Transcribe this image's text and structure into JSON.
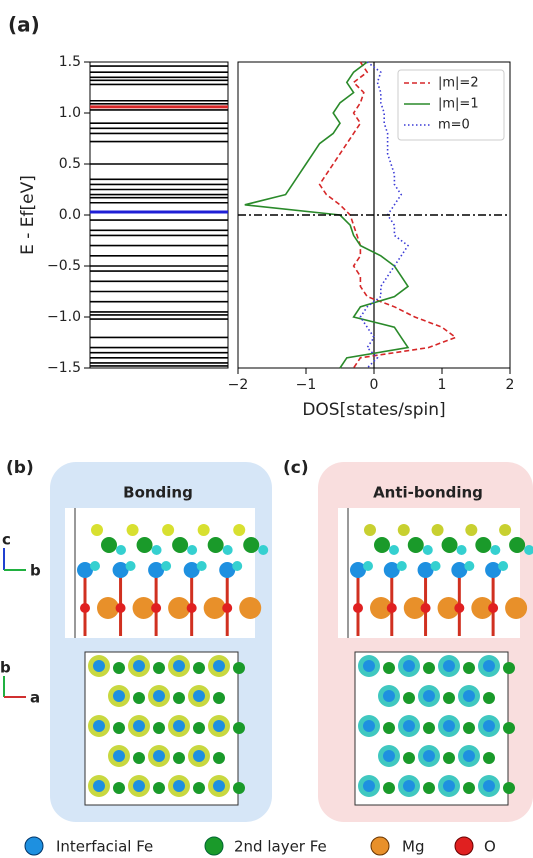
{
  "chart_data": [
    {
      "type": "levels",
      "ylabel": "E - Ef[eV]",
      "ylim": [
        -1.5,
        1.5
      ],
      "yticks": [
        {
          "value": -1.5,
          "label": "−1.5"
        },
        {
          "value": -1,
          "label": "−1.0"
        },
        {
          "value": -0.5,
          "label": "−0.5"
        },
        {
          "value": 0,
          "label": "0.0"
        },
        0.5,
        {
          "value": 1,
          "label": "1.0"
        },
        1.5
      ],
      "values": [
        1.46,
        1.4,
        1.35,
        1.32,
        1.28,
        1.12,
        1.09,
        1.06,
        1.03,
        0.9,
        0.85,
        0.8,
        0.72,
        0.5,
        0.35,
        0.3,
        0.25,
        0.2,
        0.17,
        0.12,
        0.03,
        -0.05,
        -0.15,
        -0.2,
        -0.3,
        -0.4,
        -0.5,
        -0.55,
        -0.65,
        -0.75,
        -0.85,
        -0.95,
        -0.98,
        -1.02,
        -1.2,
        -1.3,
        -1.35,
        -1.4,
        -1.45,
        -1.48
      ],
      "colors": [
        "#000",
        "#000",
        "#000",
        "#000",
        "#000",
        "#000",
        "#000",
        "#d62728",
        "#000",
        "#000",
        "#000",
        "#000",
        "#000",
        "#000",
        "#000",
        "#000",
        "#000",
        "#000",
        "#000",
        "#000",
        "#1f1fd6",
        "#000",
        "#000",
        "#000",
        "#000",
        "#000",
        "#000",
        "#000",
        "#000",
        "#000",
        "#000",
        "#000",
        "#000",
        "#000",
        "#000",
        "#000",
        "#000",
        "#000",
        "#000",
        "#000"
      ]
    },
    {
      "type": "line",
      "xlabel": "DOS[states/spin]",
      "xlim": [
        -2,
        2
      ],
      "xticks": [
        {
          "value": -2,
          "label": "−2"
        },
        {
          "value": -1,
          "label": "−1"
        },
        0,
        1,
        2
      ],
      "ylim": [
        -1.5,
        1.5
      ],
      "reference_line": 0,
      "legend": "upper right",
      "y": [
        1.5,
        1.4,
        1.3,
        1.2,
        1.1,
        1.0,
        0.9,
        0.8,
        0.7,
        0.6,
        0.5,
        0.4,
        0.3,
        0.2,
        0.1,
        0.0,
        -0.1,
        -0.2,
        -0.3,
        -0.4,
        -0.5,
        -0.6,
        -0.7,
        -0.8,
        -0.9,
        -1.0,
        -1.1,
        -1.2,
        -1.3,
        -1.4,
        -1.5
      ],
      "series": [
        {
          "name": "|m|=2",
          "color": "#d62728",
          "dash": "5,3",
          "values": [
            -0.2,
            -0.1,
            -0.3,
            -0.15,
            -0.2,
            -0.3,
            -0.2,
            -0.3,
            -0.4,
            -0.5,
            -0.6,
            -0.7,
            -0.8,
            -0.7,
            -0.5,
            -0.35,
            -0.3,
            -0.25,
            -0.2,
            -0.2,
            -0.3,
            -0.2,
            -0.2,
            -0.1,
            0.3,
            0.6,
            1.0,
            1.2,
            0.8,
            -0.2,
            -0.3
          ]
        },
        {
          "name": "|m|=1",
          "color": "#2a8a2a",
          "dash": "none",
          "values": [
            -0.1,
            -0.3,
            -0.4,
            -0.3,
            -0.5,
            -0.6,
            -0.5,
            -0.6,
            -0.8,
            -0.9,
            -1.0,
            -1.1,
            -1.2,
            -1.3,
            -1.9,
            -0.5,
            -0.35,
            -0.3,
            -0.2,
            0.1,
            0.3,
            0.4,
            0.5,
            0.3,
            -0.2,
            -0.3,
            0.3,
            0.4,
            0.5,
            -0.4,
            -0.5
          ]
        },
        {
          "name": "m=0",
          "color": "#3a3ad6",
          "dash": "1.5,2.5",
          "values": [
            -0.1,
            0.1,
            0.05,
            0.1,
            0.1,
            0.15,
            0.15,
            0.2,
            0.2,
            0.2,
            0.25,
            0.3,
            0.3,
            0.4,
            0.3,
            0.2,
            0.3,
            0.3,
            0.5,
            0.4,
            0.3,
            0.2,
            0.1,
            0.1,
            -0.1,
            -0.2,
            -0.1,
            0,
            -0.1,
            0.05,
            -0.1
          ]
        }
      ]
    }
  ],
  "panel_a": "(a)",
  "panel_b": {
    "label": "(b)",
    "title": "Bonding"
  },
  "panel_c": {
    "label": "(c)",
    "title": "Anti-bonding"
  },
  "axes": [
    "c",
    "b",
    "b",
    "a"
  ],
  "legend": [
    "Interfacial Fe",
    "2nd layer Fe",
    "Mg",
    "O"
  ]
}
